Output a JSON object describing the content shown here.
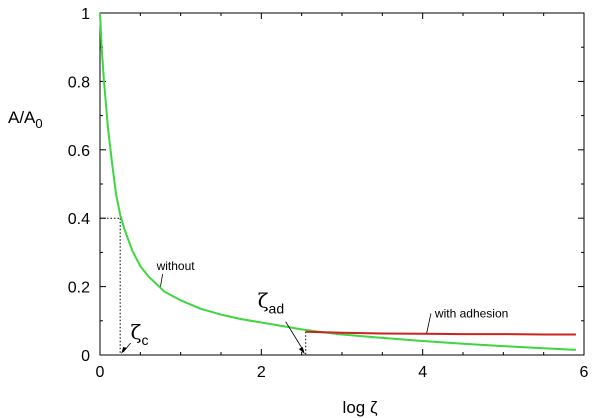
{
  "chart_data": {
    "type": "line",
    "xlabel": "log ζ",
    "ylabel": {
      "main": "A/A",
      "sub": "0"
    },
    "xlim": [
      0,
      6
    ],
    "ylim": [
      0,
      1
    ],
    "xticks": [
      "0",
      "2",
      "4",
      "6"
    ],
    "yticks": [
      "0",
      "0.2",
      "0.4",
      "0.6",
      "0.8",
      "1"
    ],
    "grid": false,
    "series": [
      {
        "name": "without",
        "color": "#3ed63e",
        "x": [
          0.0,
          0.02,
          0.05,
          0.1,
          0.15,
          0.2,
          0.25,
          0.3,
          0.4,
          0.5,
          0.6,
          0.8,
          1.0,
          1.25,
          1.5,
          1.75,
          2.0,
          2.25,
          2.5,
          2.75,
          3.0,
          3.5,
          4.0,
          4.5,
          5.0,
          5.5,
          5.9
        ],
        "y": [
          1.0,
          0.9,
          0.8,
          0.66,
          0.56,
          0.47,
          0.41,
          0.37,
          0.305,
          0.26,
          0.23,
          0.185,
          0.16,
          0.135,
          0.118,
          0.105,
          0.095,
          0.085,
          0.075,
          0.067,
          0.06,
          0.05,
          0.041,
          0.033,
          0.026,
          0.02,
          0.015
        ]
      },
      {
        "name": "with adhesion",
        "color": "#cc2222",
        "x": [
          2.55,
          3.0,
          3.5,
          4.0,
          4.5,
          5.0,
          5.5,
          5.9
        ],
        "y": [
          0.068,
          0.065,
          0.063,
          0.062,
          0.061,
          0.061,
          0.06,
          0.06
        ]
      }
    ],
    "annotations": {
      "without": {
        "text": "without",
        "at": [
          0.9,
          0.24
        ]
      },
      "with_adhesion": {
        "text": "with adhesion",
        "at": [
          4.4,
          0.11
        ]
      },
      "zeta_c": {
        "symbol": "ζ",
        "sub": "c",
        "x": 0.25,
        "y": 0.4
      },
      "zeta_ad": {
        "symbol": "ζ",
        "sub": "ad",
        "x": 2.55,
        "y": 0.068
      }
    }
  }
}
